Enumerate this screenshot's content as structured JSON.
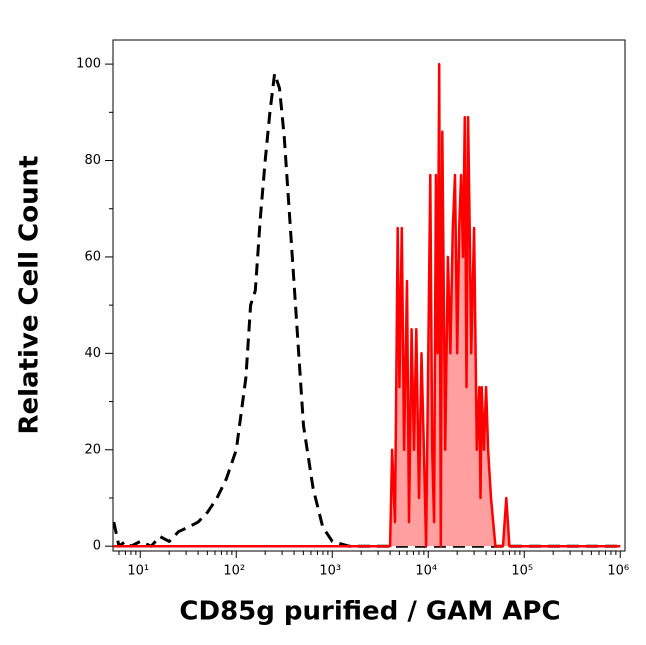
{
  "chart_data": {
    "type": "histogram-overlay",
    "xlabel": "CD85g purified / GAM APC",
    "ylabel": "Relative Cell Count",
    "xscale": "log",
    "xlim": [
      5.2,
      1120000
    ],
    "ylim": [
      -1,
      105
    ],
    "xticks": [
      {
        "value": 10,
        "label": "10¹"
      },
      {
        "value": 100,
        "label": "10²"
      },
      {
        "value": 1000,
        "label": "10³"
      },
      {
        "value": 10000,
        "label": "10⁴"
      },
      {
        "value": 100000,
        "label": "10⁵"
      },
      {
        "value": 1000000,
        "label": "10⁶"
      }
    ],
    "yticks": [
      0,
      20,
      40,
      60,
      80,
      100
    ],
    "series": [
      {
        "color": "#000000",
        "dashed": true,
        "x": [
          5.3,
          6,
          7,
          8,
          10,
          13,
          16,
          20,
          25,
          32,
          40,
          50,
          63,
          79,
          100,
          126,
          141,
          158,
          178,
          200,
          224,
          251,
          282,
          316,
          355,
          398,
          447,
          501,
          631,
          794,
          1000,
          1500,
          3000,
          10000,
          100000,
          1000000
        ],
        "values": [
          5,
          0,
          1,
          0,
          1,
          0,
          2,
          1,
          3,
          4,
          5,
          7,
          10,
          14,
          20,
          35,
          50,
          53,
          68,
          80,
          90,
          98,
          95,
          85,
          70,
          55,
          40,
          25,
          12,
          4,
          1,
          0,
          0,
          0,
          0,
          0
        ]
      },
      {
        "color": "#ff0000",
        "fill": "#ff9f9f",
        "x": [
          5.3,
          3000,
          4000,
          4200,
          4500,
          4800,
          5000,
          5300,
          5600,
          6000,
          6300,
          6700,
          7100,
          7500,
          8000,
          8500,
          9000,
          9500,
          10000,
          10500,
          11000,
          11500,
          12000,
          12500,
          13000,
          13500,
          14000,
          15000,
          16000,
          17000,
          18000,
          19000,
          20000,
          21000,
          22000,
          23000,
          24000,
          25000,
          26000,
          27000,
          28000,
          30000,
          32000,
          34000,
          35000,
          36000,
          38000,
          40000,
          42000,
          45000,
          50000,
          60000,
          65000,
          70000,
          1000000
        ],
        "values": [
          0,
          0,
          0,
          20,
          5,
          66,
          33,
          66,
          20,
          55,
          5,
          45,
          20,
          45,
          10,
          40,
          20,
          0,
          40,
          77,
          20,
          5,
          77,
          40,
          100,
          0,
          86,
          20,
          60,
          40,
          66,
          77,
          40,
          66,
          77,
          60,
          89,
          33,
          89,
          66,
          40,
          66,
          20,
          33,
          10,
          33,
          20,
          33,
          20,
          10,
          0,
          0,
          10,
          0,
          0
        ]
      }
    ]
  }
}
